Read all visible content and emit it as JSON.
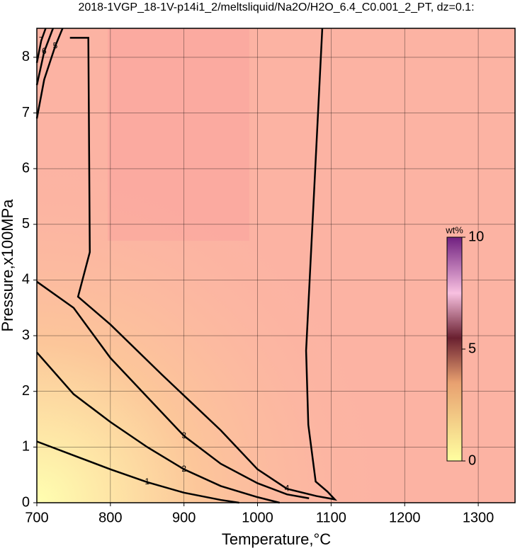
{
  "chart_data": {
    "type": "contour",
    "title": "2018-1VGP_18-1V-p14i1_2/meltsliquid/Na2O/H2O_6.4_C0.001_2_PT, dz=0.1:",
    "x_label": "Temperature,°C",
    "y_label": "Pressure,x100MPa",
    "xlim": [
      700,
      1350
    ],
    "ylim": [
      0,
      8.52
    ],
    "xticks": [
      700,
      800,
      900,
      1000,
      1100,
      1200,
      1300
    ],
    "yticks": [
      0,
      1,
      2,
      3,
      4,
      5,
      6,
      7,
      8
    ],
    "grid": true,
    "line_color": "#000000",
    "contours": [
      {
        "level": 1,
        "x": [
          700,
          750,
          800,
          850,
          900,
          950,
          975
        ],
        "y": [
          1.1,
          0.85,
          0.6,
          0.37,
          0.18,
          0.05,
          0
        ]
      },
      {
        "level": 2,
        "x": [
          700,
          750,
          800,
          850,
          900,
          950,
          1000,
          1030
        ],
        "y": [
          2.7,
          1.95,
          1.45,
          1.0,
          0.6,
          0.3,
          0.1,
          0
        ]
      },
      {
        "level": 3,
        "x": [
          700,
          750,
          800,
          850,
          900,
          950,
          1000,
          1040,
          1070
        ],
        "y": [
          3.97,
          3.5,
          2.6,
          1.9,
          1.2,
          0.7,
          0.35,
          0.15,
          0.08
        ]
      },
      {
        "level": 4,
        "x": [
          745,
          770,
          772,
          756,
          800,
          870,
          950,
          1000,
          1040,
          1080,
          1105,
          1095,
          1079,
          1069,
          1066,
          1088
        ],
        "y": [
          8.35,
          8.35,
          4.5,
          3.7,
          3.2,
          2.3,
          1.3,
          0.6,
          0.25,
          0.12,
          0.06,
          0.2,
          0.38,
          1.4,
          2.73,
          8.52
        ]
      },
      {
        "level": 5,
        "x": [
          700,
          710,
          725,
          735
        ],
        "y": [
          6.9,
          7.6,
          8.2,
          8.52
        ]
      },
      {
        "level": 6,
        "x": [
          700,
          710,
          722
        ],
        "y": [
          7.5,
          8.1,
          8.52
        ]
      },
      {
        "level": 7,
        "x": [
          700,
          706,
          712
        ],
        "y": [
          7.9,
          8.3,
          8.52
        ]
      }
    ],
    "colorbar": {
      "label": "wt%",
      "lim": [
        0,
        10
      ],
      "ticks": [
        0,
        5,
        10
      ]
    }
  }
}
